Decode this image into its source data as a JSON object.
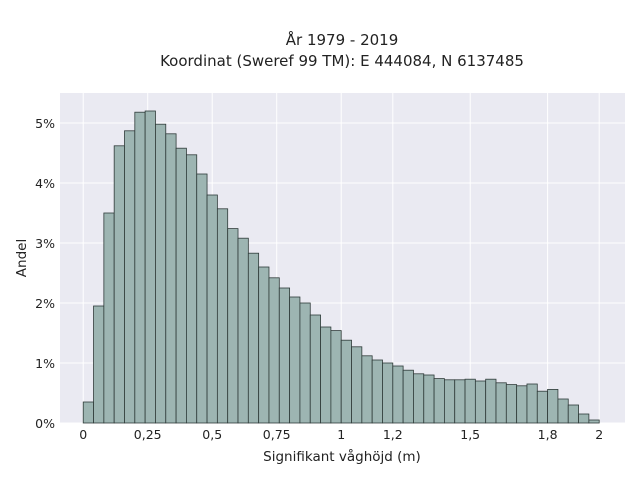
{
  "chart_data": {
    "type": "bar",
    "title": "År 1979 - 2019",
    "subtitle": "Koordinat (Sweref 99 TM): E 444084, N 6137485",
    "xlabel": "Signifikant våghöjd (m)",
    "ylabel": "Andel",
    "xlim": [
      -0.09,
      2.1
    ],
    "ylim": [
      0,
      5.5
    ],
    "x_ticks": [
      {
        "value": 0,
        "label": "0"
      },
      {
        "value": 0.25,
        "label": "0,25"
      },
      {
        "value": 0.5,
        "label": "0,5"
      },
      {
        "value": 0.75,
        "label": "0,75"
      },
      {
        "value": 1,
        "label": "1"
      },
      {
        "value": 1.2,
        "label": "1,2"
      },
      {
        "value": 1.5,
        "label": "1,5"
      },
      {
        "value": 1.8,
        "label": "1,8"
      },
      {
        "value": 2,
        "label": "2"
      }
    ],
    "y_ticks": [
      {
        "value": 0,
        "label": "0%"
      },
      {
        "value": 1,
        "label": "1%"
      },
      {
        "value": 2,
        "label": "2%"
      },
      {
        "value": 3,
        "label": "3%"
      },
      {
        "value": 4,
        "label": "4%"
      },
      {
        "value": 5,
        "label": "5%"
      }
    ],
    "grid": true,
    "bin_width": 0.04,
    "bin_starts": [
      0,
      0.04,
      0.08,
      0.12,
      0.16,
      0.2,
      0.24,
      0.28,
      0.32,
      0.36,
      0.4,
      0.44,
      0.48,
      0.52,
      0.56,
      0.6,
      0.64,
      0.68,
      0.72,
      0.76,
      0.8,
      0.84,
      0.88,
      0.92,
      0.96,
      1.0,
      1.04,
      1.08,
      1.12,
      1.16,
      1.2,
      1.24,
      1.28,
      1.32,
      1.36,
      1.4,
      1.44,
      1.48,
      1.52,
      1.56,
      1.6,
      1.64,
      1.68,
      1.72,
      1.76,
      1.8,
      1.84,
      1.88,
      1.92,
      1.96,
      2.0
    ],
    "values": [
      0.35,
      1.95,
      3.5,
      4.62,
      4.87,
      5.18,
      5.2,
      4.98,
      4.82,
      4.58,
      4.47,
      4.15,
      3.8,
      3.57,
      3.24,
      3.08,
      2.83,
      2.6,
      2.42,
      2.25,
      2.1,
      2.0,
      1.8,
      1.6,
      1.54,
      1.38,
      1.27,
      1.12,
      1.05,
      1.0,
      0.95,
      0.88,
      0.82,
      0.8,
      0.74,
      0.72,
      0.72,
      0.73,
      0.7,
      0.73,
      0.67,
      0.64,
      0.62,
      0.65,
      0.53,
      0.56,
      0.4,
      0.3,
      0.15,
      0.05,
      0
    ],
    "colors": {
      "bar_fill": "#9db5b2",
      "bar_edge": "#2f3b39",
      "plot_background": "#eaeaf2",
      "grid": "#ffffff",
      "text": "#222222"
    }
  }
}
